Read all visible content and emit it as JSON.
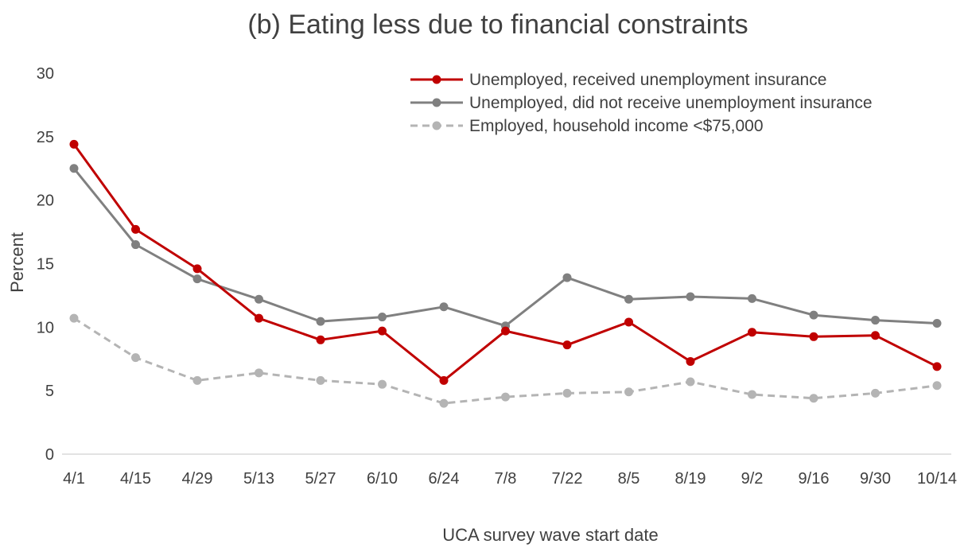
{
  "chart_data": {
    "type": "line",
    "title": "(b) Eating less due to financial constraints",
    "xlabel": "UCA survey wave start date",
    "ylabel": "Percent",
    "ylim": [
      0,
      30
    ],
    "yticks": [
      0,
      5,
      10,
      15,
      20,
      25,
      30
    ],
    "grid": false,
    "legend_position": "top-right",
    "categories": [
      "4/1",
      "4/15",
      "4/29",
      "5/13",
      "5/27",
      "6/10",
      "6/24",
      "7/8",
      "7/22",
      "8/5",
      "8/19",
      "9/2",
      "9/16",
      "9/30",
      "10/14"
    ],
    "series": [
      {
        "name": "Unemployed, received unemployment insurance",
        "color": "#C00000",
        "dashed": false,
        "values": [
          24.4,
          17.7,
          14.6,
          10.7,
          9.0,
          9.7,
          5.8,
          9.7,
          8.6,
          10.4,
          7.3,
          9.6,
          9.25,
          9.35,
          6.9
        ]
      },
      {
        "name": "Unemployed, did not receive unemployment insurance",
        "color": "#808080",
        "dashed": false,
        "values": [
          22.5,
          16.5,
          13.8,
          12.2,
          10.45,
          10.8,
          11.6,
          10.1,
          13.9,
          12.2,
          12.4,
          12.25,
          10.95,
          10.55,
          10.3
        ]
      },
      {
        "name": "Employed, household income <$75,000",
        "color": "#B4B4B4",
        "dashed": true,
        "values": [
          10.7,
          7.6,
          5.8,
          6.4,
          5.8,
          5.5,
          4.0,
          4.5,
          4.8,
          4.9,
          5.7,
          4.7,
          4.4,
          4.8,
          5.4
        ]
      }
    ]
  }
}
